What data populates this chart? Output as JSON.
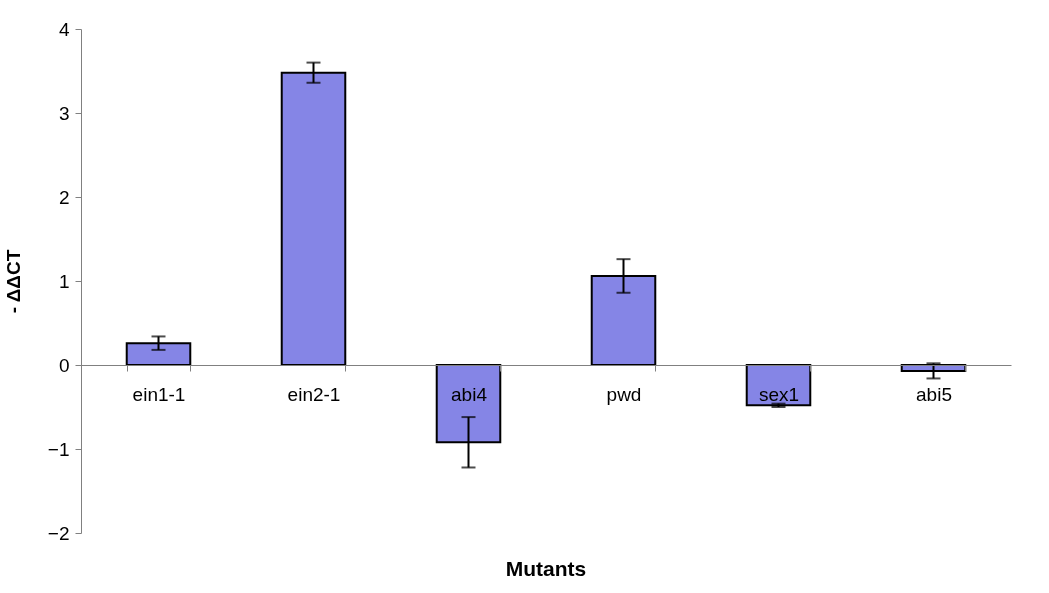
{
  "chart_data": {
    "type": "bar",
    "xlabel": "Mutants",
    "ylabel": "- ΔΔCT",
    "categories": [
      "ein1-1",
      "ein2-1",
      "abi4",
      "pwd",
      "sex1",
      "abi5"
    ],
    "values": [
      0.26,
      3.48,
      -0.92,
      1.06,
      -0.48,
      -0.07
    ],
    "errors": [
      0.08,
      0.12,
      0.3,
      0.2,
      0.02,
      0.09
    ],
    "color": "#8585e6",
    "ylim": [
      -2,
      4
    ],
    "yticks": [
      -2,
      -1,
      0,
      1,
      2,
      3,
      4
    ],
    "grid": false
  }
}
